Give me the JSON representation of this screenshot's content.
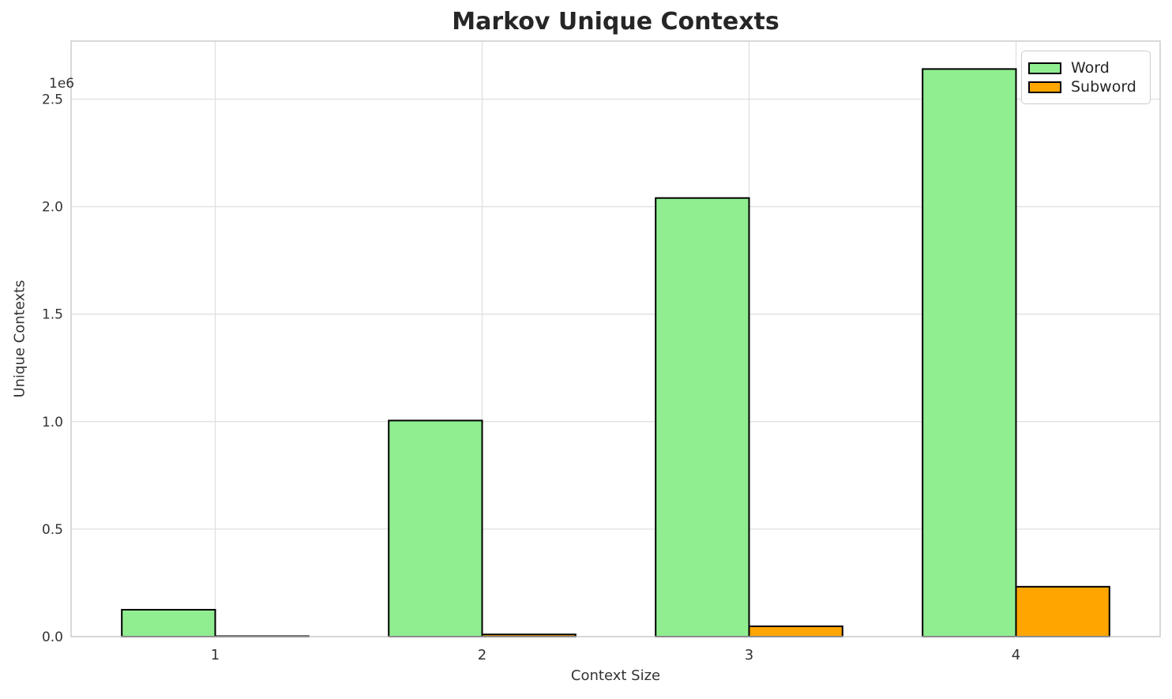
{
  "title": "Markov Unique Contexts",
  "chart_data": {
    "type": "bar",
    "title": "Markov Unique Contexts",
    "xlabel": "Context Size",
    "ylabel": "Unique Contexts",
    "offset_text": "1e6",
    "categories": [
      "1",
      "2",
      "3",
      "4"
    ],
    "category_x": [
      1,
      2,
      3,
      4
    ],
    "series": [
      {
        "name": "Word",
        "color": "#90EE90",
        "values": [
          125000,
          1005000,
          2040000,
          2640000
        ]
      },
      {
        "name": "Subword",
        "color": "#FFA500",
        "values": [
          2000,
          10000,
          48000,
          232000
        ]
      }
    ],
    "bar_edge_color": "#000000",
    "bar_width_units": 0.35,
    "xlim": [
      0.46,
      4.54
    ],
    "ylim": [
      0,
      2770000
    ],
    "yticks": [
      0,
      500000,
      1000000,
      1500000,
      2000000,
      2500000
    ],
    "ytick_labels": [
      "0.0",
      "0.5",
      "1.0",
      "1.5",
      "2.0",
      "2.5"
    ],
    "grid": true,
    "grid_color": "#e0e0e0",
    "spine_color": "#c9c9c9",
    "tick_label_color": "#333333",
    "legend_position": "upper right"
  },
  "legend": {
    "items": [
      {
        "label": "Word",
        "color": "#90EE90"
      },
      {
        "label": "Subword",
        "color": "#FFA500"
      }
    ]
  }
}
